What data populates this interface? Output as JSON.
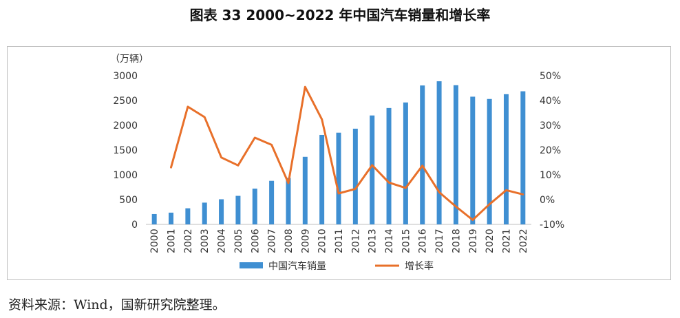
{
  "title": "图表 33 2000~2022 年中国汽车销量和增长率",
  "source": "资料来源：Wind，国新研究院整理。",
  "chart_data": {
    "type": "bar",
    "title": "图表 33 2000~2022 年中国汽车销量和增长率",
    "categories": [
      "2000",
      "2001",
      "2002",
      "2003",
      "2004",
      "2005",
      "2006",
      "2007",
      "2008",
      "2009",
      "2010",
      "2011",
      "2012",
      "2013",
      "2014",
      "2015",
      "2016",
      "2017",
      "2018",
      "2019",
      "2020",
      "2021",
      "2022"
    ],
    "series": [
      {
        "name": "中国汽车销量",
        "kind": "bar",
        "axis": "left",
        "color": "#3f8fd2",
        "values": [
          209,
          237,
          325,
          439,
          507,
          576,
          722,
          879,
          938,
          1364,
          1806,
          1851,
          1931,
          2198,
          2349,
          2460,
          2803,
          2888,
          2808,
          2577,
          2531,
          2627,
          2686
        ]
      },
      {
        "name": "增长率",
        "kind": "line",
        "axis": "right",
        "color": "#e8702a",
        "values": [
          null,
          13.0,
          37.5,
          33.3,
          17.0,
          13.8,
          25.0,
          22.1,
          6.7,
          45.5,
          32.4,
          2.5,
          4.3,
          13.9,
          6.9,
          4.7,
          13.7,
          3.0,
          -2.8,
          -8.2,
          -1.9,
          3.8,
          2.1
        ]
      }
    ],
    "y_left": {
      "unit_label": "（万辆）",
      "ylim": [
        0,
        3000
      ],
      "ticks": [
        "0",
        "500",
        "1000",
        "1500",
        "2000",
        "2500",
        "3000"
      ]
    },
    "y_right": {
      "ylim": [
        -10,
        50
      ],
      "ticks": [
        "-10%",
        "0%",
        "10%",
        "20%",
        "30%",
        "40%",
        "50%"
      ]
    },
    "grid": false,
    "legend_position": "bottom"
  }
}
